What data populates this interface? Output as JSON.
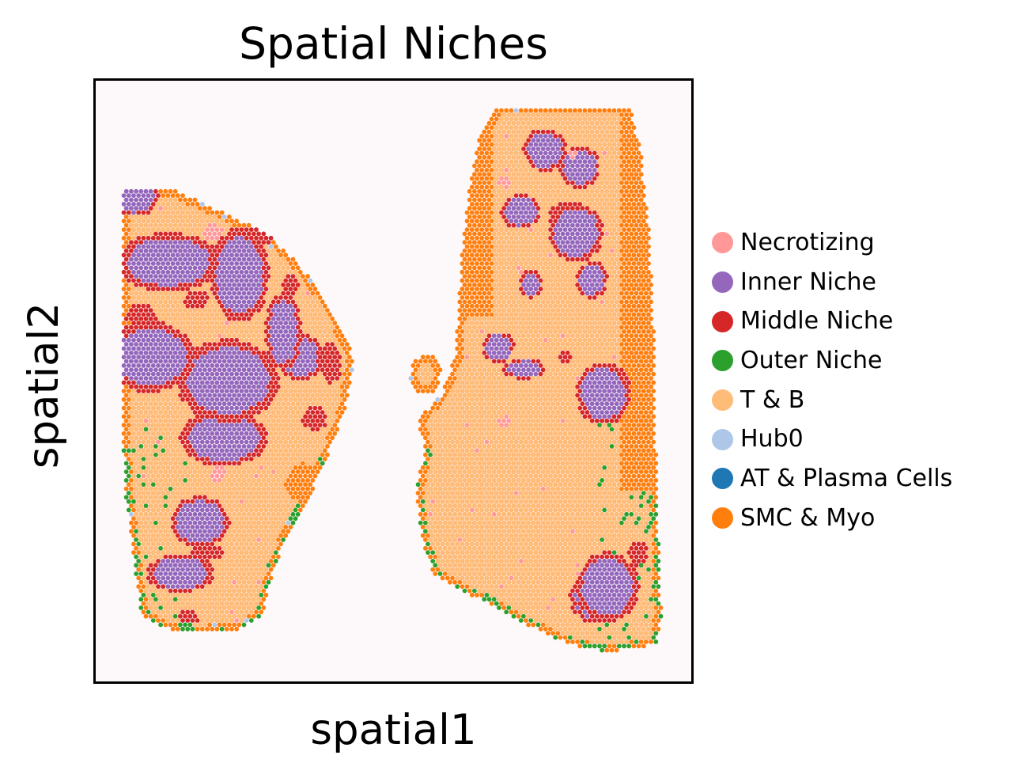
{
  "chart_data": {
    "type": "scatter",
    "title": "Spatial Niches",
    "xlabel": "spatial1",
    "ylabel": "spatial2",
    "xticks": [],
    "yticks": [],
    "legend_position": "right",
    "categories": [
      {
        "name": "Necrotizing",
        "color": "#ff9896"
      },
      {
        "name": "Inner Niche",
        "color": "#9467bd"
      },
      {
        "name": "Middle Niche",
        "color": "#d62728"
      },
      {
        "name": "Outer Niche",
        "color": "#2ca02c"
      },
      {
        "name": "T & B",
        "color": "#ffbb78"
      },
      {
        "name": "Hub0",
        "color": "#aec7e8"
      },
      {
        "name": "AT & Plasma Cells",
        "color": "#1f77b4"
      },
      {
        "name": "SMC & Myo",
        "color": "#ff7f0e"
      }
    ]
  }
}
